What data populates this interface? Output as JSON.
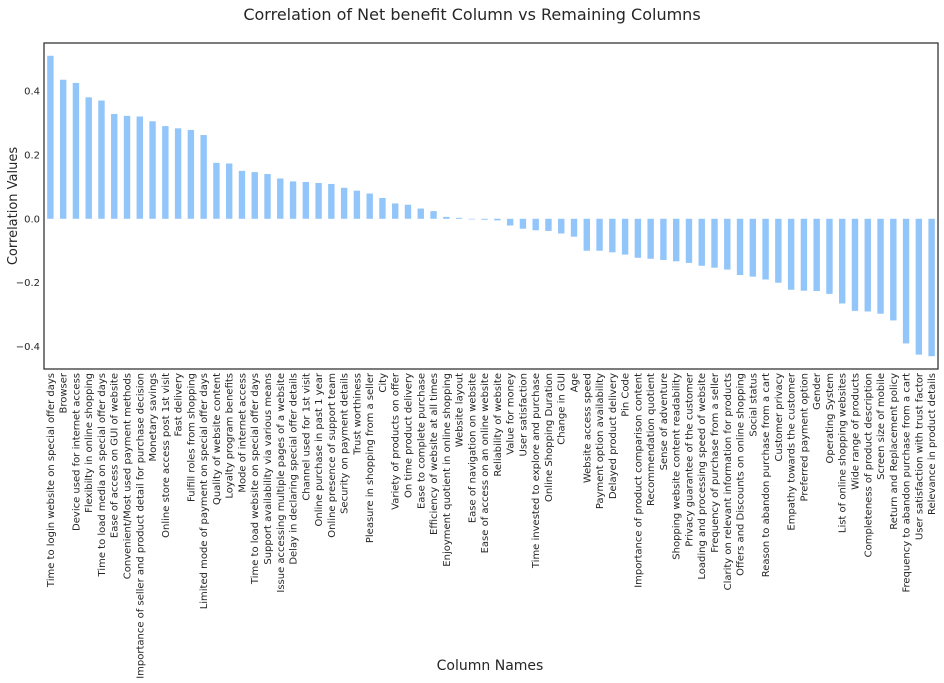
{
  "chart_data": {
    "type": "bar",
    "title": "Correlation of Net benefit Column vs Remaining Columns",
    "xlabel": "Column Names",
    "ylabel": "Correlation Values",
    "ylim": [
      -0.47,
      0.55
    ],
    "yticks": [
      -0.4,
      -0.2,
      0.0,
      0.2,
      0.4
    ],
    "ytick_labels": [
      "−0.4",
      "−0.2",
      "0.0",
      "0.2",
      "0.4"
    ],
    "grid": false,
    "bar_color": "#92c5f9",
    "categories": [
      "Time to login website on special offer days",
      "Browser",
      "Device used for internet access",
      "Flexibilty in online shopping",
      "Time to load media on special offer days",
      "Ease of access on GUI of website",
      "Convenient/Most used payment methods",
      "Importance of seller and product detail for purchase decision",
      "Monetary savings",
      "Online store access post 1st visit",
      "Fast delivery",
      "Fulfill roles from shopping",
      "Limited mode of payment on special offer days",
      "Quality of website content",
      "Loyalty program benefits",
      "Mode of internet access",
      "Time to load website on special offer days",
      "Support availability via various means",
      "Issue accessing multiple pages of a website",
      "Delay in declaring special offer details",
      "Channel used for 1st visit",
      "Online purchase in past 1 year",
      "Online presence of support team",
      "Security on payment details",
      "Trust worthiness",
      "Pleasure in shopping from a seller",
      "City",
      "Variety of products on offer",
      "On time product delivery",
      "Ease to complete purchase",
      "Efficiency of website at all times",
      "Enjoyment quotient in online shopping",
      "Website layout",
      "Ease of navigation on website",
      "Ease of access on an online website",
      "Reliability of website",
      "Value for money",
      "User satisfaction",
      "Time invested to explore and purchase",
      "Online Shopping Duration",
      "Change in GUI",
      "Age",
      "Website access speed",
      "Payment option availability",
      "Delayed product delivery",
      "Pin Code",
      "Importance of product comparison content",
      "Recommendation quotient",
      "Sense of adventure",
      "Shopping website content readability",
      "Privacy guarantee of the customer",
      "Loading and processing speed of website",
      "Frequency of purchase from a seller",
      "Clarity on relevant information for products",
      "Offers and Discounts on online shopping",
      "Social status",
      "Reason to abandon purchase from a cart",
      "Customer privacy",
      "Empathy towards the customer",
      "Preferred payment option",
      "Gender",
      "Operating System",
      "List of online shopping websites",
      "Wide range of products",
      "Completeness of product description",
      "Screen size of mobile",
      "Return and Replacement policy",
      "Frequency to abandon purchase from a cart",
      "User satisfaction with trust factor",
      "Relevance in product details"
    ],
    "values": [
      0.51,
      0.435,
      0.425,
      0.38,
      0.37,
      0.328,
      0.322,
      0.32,
      0.305,
      0.29,
      0.283,
      0.278,
      0.262,
      0.175,
      0.173,
      0.15,
      0.146,
      0.14,
      0.126,
      0.117,
      0.115,
      0.112,
      0.109,
      0.097,
      0.088,
      0.079,
      0.065,
      0.048,
      0.044,
      0.032,
      0.024,
      0.006,
      0.003,
      0.0,
      -0.003,
      -0.005,
      -0.021,
      -0.031,
      -0.036,
      -0.038,
      -0.046,
      -0.056,
      -0.1,
      -0.1,
      -0.105,
      -0.112,
      -0.122,
      -0.125,
      -0.129,
      -0.133,
      -0.138,
      -0.147,
      -0.153,
      -0.159,
      -0.176,
      -0.181,
      -0.19,
      -0.2,
      -0.222,
      -0.225,
      -0.226,
      -0.235,
      -0.265,
      -0.288,
      -0.29,
      -0.297,
      -0.318,
      -0.39,
      -0.425,
      -0.43
    ]
  }
}
